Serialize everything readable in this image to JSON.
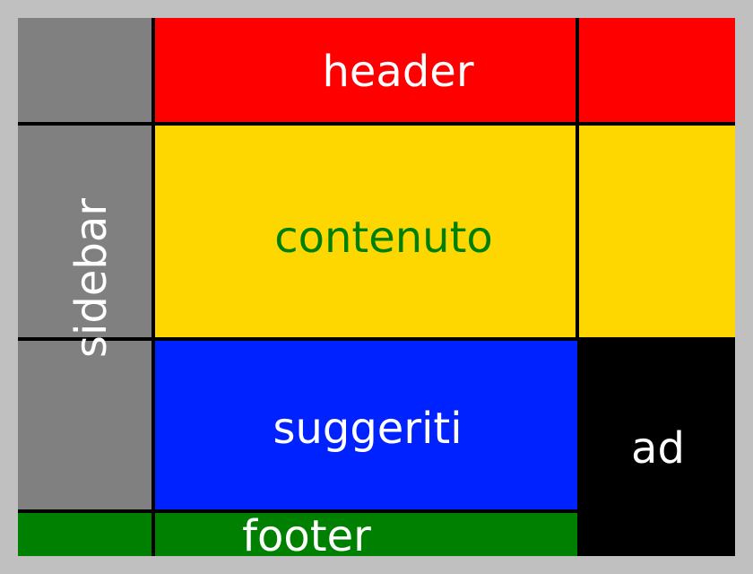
{
  "header": {
    "label": "header",
    "color": "#ff0000",
    "text_color": "#ffffff"
  },
  "sidebar": {
    "label": "sidebar",
    "color": "#808080",
    "text_color": "#ffffff"
  },
  "contenuto": {
    "label": "contenuto",
    "color": "#ffd700",
    "text_color": "#008000"
  },
  "suggeriti": {
    "label": "suggeriti",
    "color": "#0022ff",
    "text_color": "#ffffff"
  },
  "ad": {
    "label": "ad",
    "color": "#000000",
    "text_color": "#ffffff"
  },
  "footer": {
    "label": "footer",
    "color": "#008000",
    "text_color": "#ffffff"
  },
  "frame_color": "#c0c0c0",
  "grid_line_color": "#000000"
}
